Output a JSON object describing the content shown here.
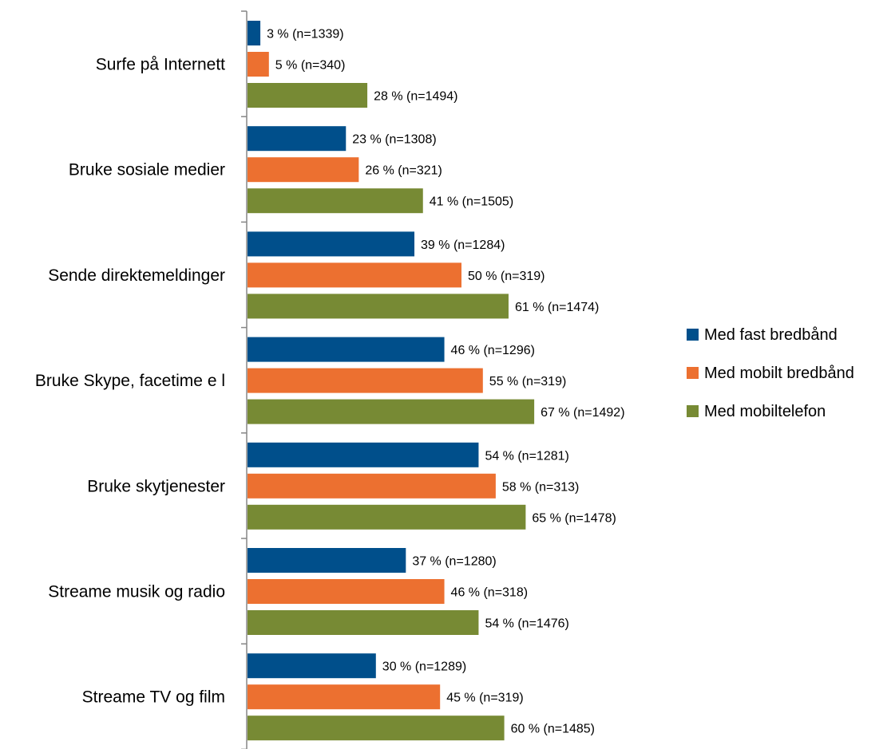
{
  "chart_data": {
    "type": "bar",
    "orientation": "horizontal",
    "title": "",
    "xlabel": "",
    "ylabel": "",
    "xlim": [
      0,
      100
    ],
    "grid": false,
    "legend_position": "right",
    "categories": [
      "Surfe på Internett",
      "Bruke sosiale medier",
      "Sende direktemeldinger",
      "Bruke Skype, facetime e l",
      "Bruke skytjenester",
      "Streame musik og radio",
      "Streame TV og film"
    ],
    "series": [
      {
        "name": "Med fast bredbånd",
        "color": "#004F8B",
        "values": [
          3,
          23,
          39,
          46,
          54,
          37,
          30
        ],
        "labels": [
          "3 % (n=1339)",
          "23 % (n=1308)",
          "39 % (n=1284)",
          "46 % (n=1296)",
          "54 % (n=1281)",
          "37 % (n=1280)",
          "30 % (n=1289)"
        ]
      },
      {
        "name": "Med mobilt bredbånd",
        "color": "#EC7030",
        "values": [
          5,
          26,
          50,
          55,
          58,
          46,
          45
        ],
        "labels": [
          "5 % (n=340)",
          "26 % (n=321)",
          "50 % (n=319)",
          "55 % (n=319)",
          "58 % (n=313)",
          "46 % (n=318)",
          "45 % (n=319)"
        ]
      },
      {
        "name": "Med mobiltelefon",
        "color": "#778A34",
        "values": [
          28,
          41,
          61,
          67,
          65,
          54,
          60
        ],
        "labels": [
          "28 % (n=1494)",
          "41 % (n=1505)",
          "61 % (n=1474)",
          "67 % (n=1492)",
          "65 % (n=1478)",
          "54 % (n=1476)",
          "60 % (n=1485)"
        ]
      }
    ]
  }
}
